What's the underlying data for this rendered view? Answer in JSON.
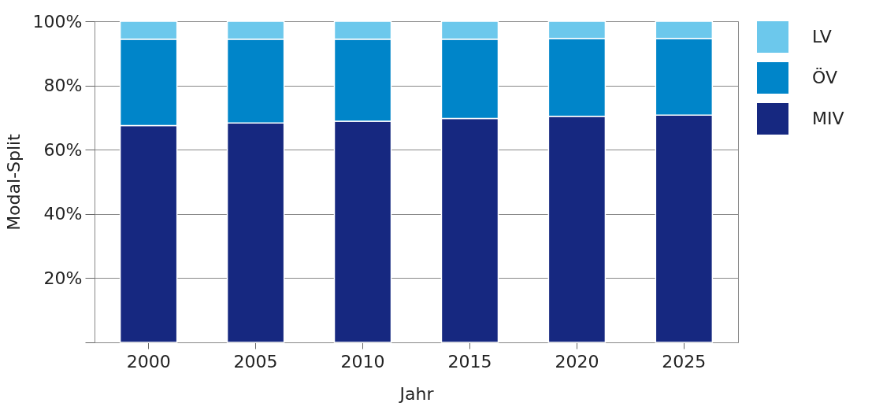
{
  "chart_data": {
    "type": "bar",
    "stacked": true,
    "xlabel": "Jahr",
    "ylabel": "Modal-Split",
    "categories": [
      "2000",
      "2005",
      "2010",
      "2015",
      "2020",
      "2025"
    ],
    "series": [
      {
        "name": "MIV",
        "color": "#162880",
        "values": [
          67.5,
          68.3,
          68.9,
          69.7,
          70.4,
          70.8
        ]
      },
      {
        "name": "ÖV",
        "color": "#0085c9",
        "values": [
          26.9,
          26.1,
          25.5,
          24.7,
          24.2,
          23.8
        ]
      },
      {
        "name": "LV",
        "color": "#6cc8ec",
        "values": [
          5.6,
          5.6,
          5.6,
          5.6,
          5.4,
          5.4
        ]
      }
    ],
    "ylim": [
      0,
      100
    ],
    "yticks": [
      {
        "value": 0,
        "label": null
      },
      {
        "value": 20,
        "label": "20%"
      },
      {
        "value": 40,
        "label": "40%"
      },
      {
        "value": 60,
        "label": "60%"
      },
      {
        "value": 80,
        "label": "80%"
      },
      {
        "value": 100,
        "label": "100%"
      }
    ],
    "grid": "y",
    "legend": "right"
  }
}
